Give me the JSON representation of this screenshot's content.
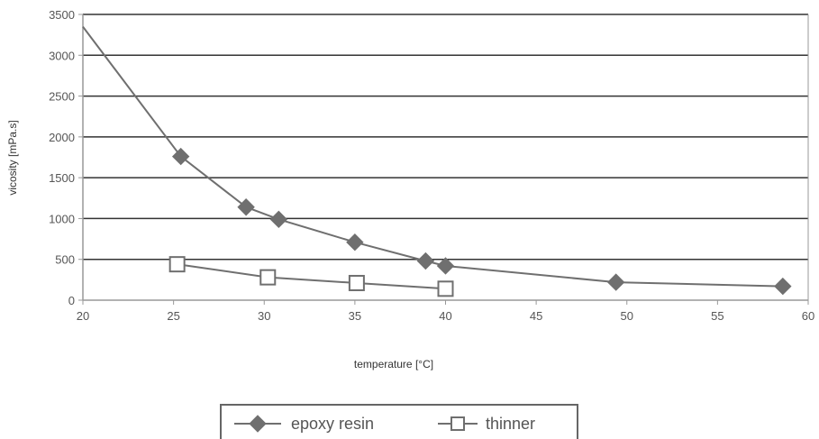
{
  "chart_data": {
    "type": "line",
    "title": "",
    "xlabel": "temperature [°C]",
    "ylabel": "vicosity [mPa.s]",
    "xlim": [
      20,
      60
    ],
    "ylim": [
      0,
      3500
    ],
    "x_ticks": [
      20,
      25,
      30,
      35,
      40,
      45,
      50,
      55,
      60
    ],
    "y_ticks": [
      0,
      500,
      1000,
      1500,
      2000,
      2500,
      3000,
      3500
    ],
    "grid": "horizontal",
    "legend_position": "bottom-center",
    "series": [
      {
        "name": "epoxy resin",
        "marker": "diamond-filled",
        "color": "#6f6f6f",
        "x": [
          20,
          25.4,
          29,
          30.8,
          35,
          38.9,
          40,
          49.4,
          58.6
        ],
        "y": [
          3350,
          1760,
          1140,
          990,
          710,
          480,
          420,
          220,
          170
        ]
      },
      {
        "name": "thinner",
        "marker": "square-open",
        "color": "#6f6f6f",
        "x": [
          25.2,
          30.2,
          35.1,
          40
        ],
        "y": [
          440,
          280,
          210,
          140
        ]
      }
    ]
  }
}
